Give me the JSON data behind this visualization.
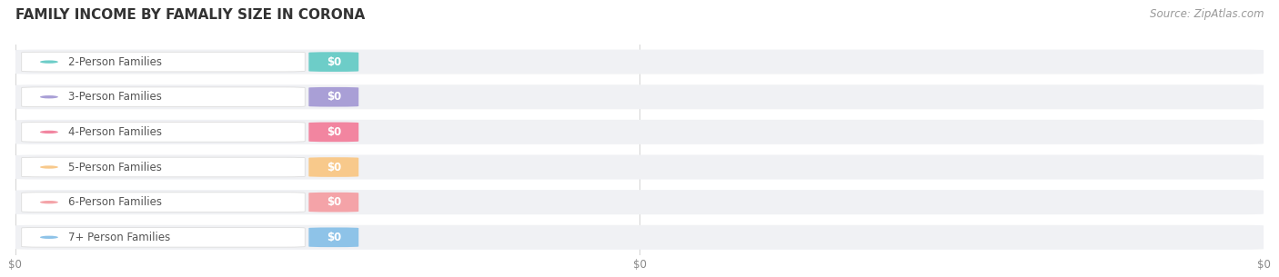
{
  "title": "FAMILY INCOME BY FAMALIY SIZE IN CORONA",
  "source": "Source: ZipAtlas.com",
  "categories": [
    "2-Person Families",
    "3-Person Families",
    "4-Person Families",
    "5-Person Families",
    "6-Person Families",
    "7+ Person Families"
  ],
  "values": [
    0,
    0,
    0,
    0,
    0,
    0
  ],
  "bar_colors": [
    "#6dcdc8",
    "#a99fd6",
    "#f285a0",
    "#f8c98b",
    "#f4a3a8",
    "#8ec3e8"
  ],
  "bar_bg_color": "#f0f1f4",
  "value_label": "$0",
  "xtick_labels": [
    "$0",
    "$0",
    "$0"
  ],
  "background_color": "#ffffff",
  "title_fontsize": 11,
  "label_fontsize": 8.5,
  "source_fontsize": 8.5,
  "fig_width": 14.06,
  "fig_height": 3.05
}
